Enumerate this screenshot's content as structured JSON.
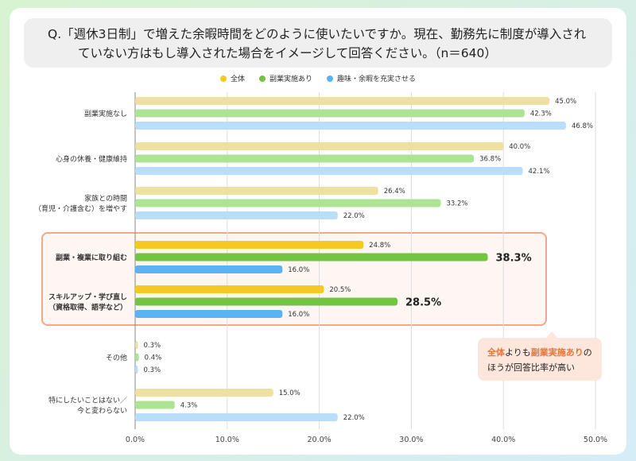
{
  "title": {
    "line1": "Q.「週休3日制」で増えた余暇時間をどのように使いたいですか。現在、勤務先に制度が導入され",
    "line2": "ていない方はもし導入された場合をイメージして回答ください。（n＝640）"
  },
  "chart_data": {
    "type": "bar",
    "orientation": "horizontal",
    "categories": [
      "副業実施なし",
      "心身の休養・健康維持",
      "家族との時間\n（育児・介護含む）を増やす",
      "副業・複業に取り組む",
      "スキルアップ・学び直し\n（資格取得、語学など）",
      "その他",
      "特にしたいことはない／\n今と変わらない"
    ],
    "highlighted_categories": [
      "副業・複業に取り組む",
      "スキルアップ・学び直し\n（資格取得、語学など）"
    ],
    "series": [
      {
        "name": "全体",
        "values": [
          45.0,
          40.0,
          26.4,
          24.8,
          20.5,
          0.3,
          15.0
        ],
        "color": "#ede0a0",
        "highlight_color": "#f5c823"
      },
      {
        "name": "副業実施あり",
        "values": [
          42.3,
          36.8,
          33.2,
          38.3,
          28.5,
          0.4,
          4.3
        ],
        "color": "#ade493",
        "highlight_color": "#72c441"
      },
      {
        "name": "趣味・余暇を充実させる",
        "values": [
          46.8,
          42.1,
          22.0,
          16.0,
          16.0,
          0.3,
          22.0
        ],
        "color": "#b9defa",
        "highlight_color": "#5cb2f5"
      }
    ],
    "xlim": [
      0,
      50
    ],
    "xticks": [
      "0.0%",
      "10.0%",
      "20.0%",
      "30.0%",
      "40.0%",
      "50.0%"
    ],
    "value_suffix": "%",
    "grid": true,
    "legend": "top-center"
  },
  "note": {
    "part1": "全体",
    "part2": "よりも",
    "part3": "副業実施あり",
    "part4": "の",
    "line2": "ほうが回答比率が高い"
  }
}
